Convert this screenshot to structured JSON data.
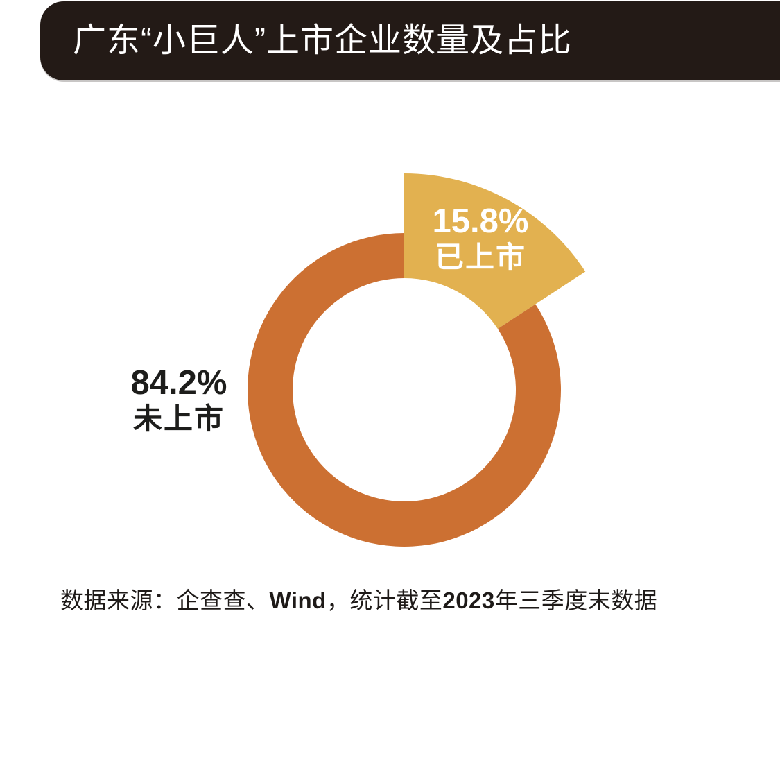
{
  "header": {
    "title": "广东“小巨人”上市企业数量及占比"
  },
  "chart_data": {
    "type": "pie",
    "donut": true,
    "title": "广东“小巨人”上市企业数量及占比",
    "start_angle_deg": 0,
    "direction": "clockwise",
    "legend_position": "none",
    "slices": [
      {
        "id": "listed",
        "name": "已上市",
        "value": 15.8,
        "pct_label": "15.8%",
        "color": "#E2B150",
        "label_color": "#FFFFFF",
        "emphasized": true
      },
      {
        "id": "unlisted",
        "name": "未上市",
        "value": 84.2,
        "pct_label": "84.2%",
        "color": "#CC7032",
        "label_color": "#1D1D1B",
        "emphasized": false
      }
    ]
  },
  "footer": {
    "segments": [
      {
        "text": "数据来源：企查查、",
        "bold": false
      },
      {
        "text": "Wind",
        "bold": true
      },
      {
        "text": "，统计截至",
        "bold": false
      },
      {
        "text": "2023",
        "bold": true
      },
      {
        "text": "年三季度末数据",
        "bold": false
      }
    ]
  },
  "colors": {
    "title_bar": "#231A16",
    "title_text": "#FFFFFF",
    "listed": "#E2B150",
    "unlisted": "#CC7032",
    "background": "#FFFFFF",
    "footer_text": "#1E1A18"
  }
}
